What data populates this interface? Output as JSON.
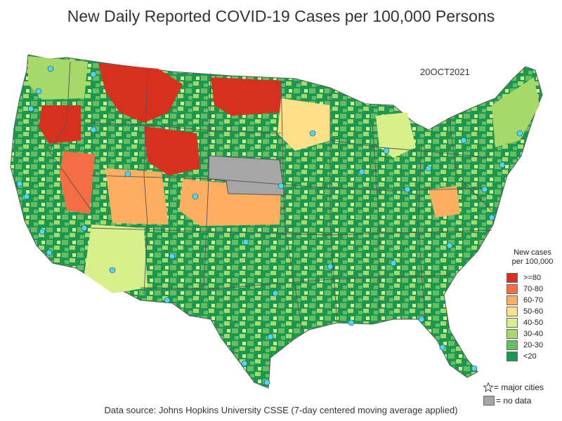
{
  "title": "New Daily Reported COVID-19 Cases per 100,000 Persons",
  "date_label": "20OCT2021",
  "legend": {
    "title_line1": "New cases",
    "title_line2": "per 100,000",
    "items": [
      {
        "label": ">=80",
        "color": "#d7301f"
      },
      {
        "label": "70-80",
        "color": "#f46d43"
      },
      {
        "label": "60-70",
        "color": "#fdae61"
      },
      {
        "label": "50-60",
        "color": "#fee08b"
      },
      {
        "label": "40-50",
        "color": "#d9ef8b"
      },
      {
        "label": "30-40",
        "color": "#a6d96a"
      },
      {
        "label": "20-30",
        "color": "#66bd63"
      },
      {
        "label": "<20",
        "color": "#1a9850"
      }
    ],
    "major_cities_label": "= major cities",
    "no_data_label": "= no data",
    "no_data_color": "#a6a6a6",
    "city_marker_color": "#4fd8f0"
  },
  "source": "Data source: Johns Hopkins University CSSE (7-day centered moving average applied)"
}
